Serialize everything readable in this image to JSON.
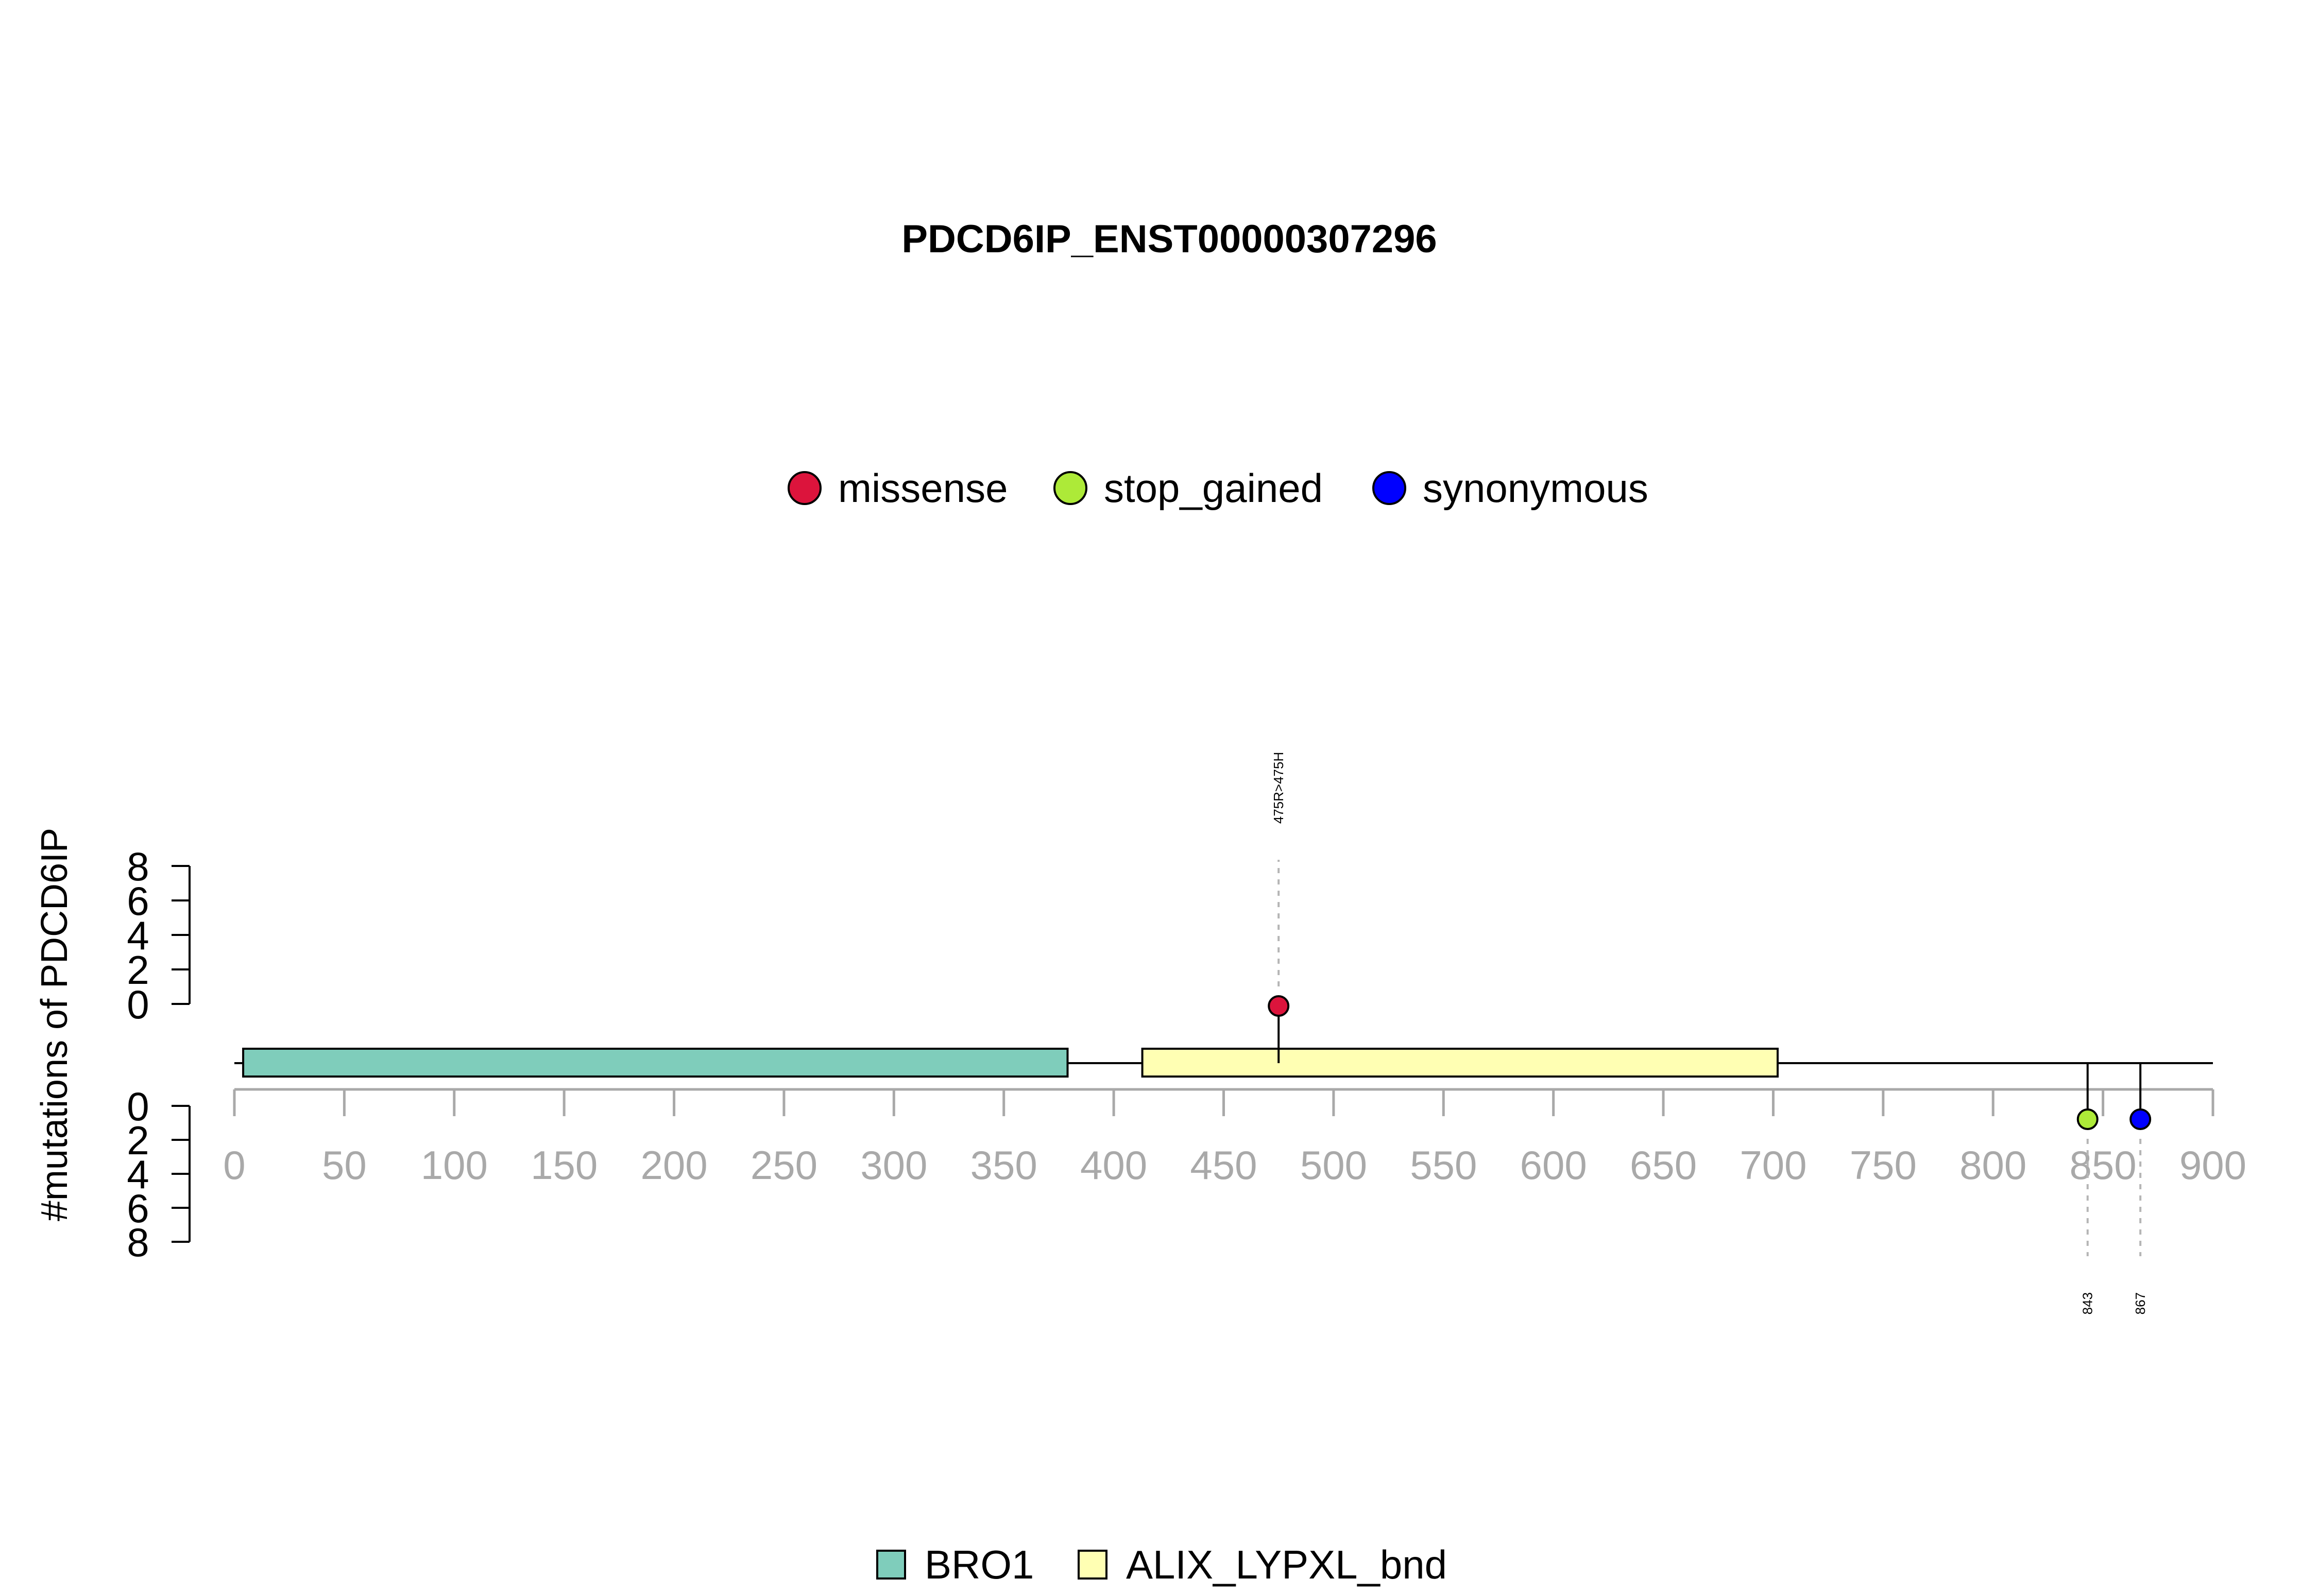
{
  "chart_data": {
    "type": "lollipop",
    "title": "PDCD6IP_ENST00000307296",
    "ylabel": "#mutations of PDCD6IP",
    "xlim": [
      0,
      900
    ],
    "x_ticks": [
      0,
      50,
      100,
      150,
      200,
      250,
      300,
      350,
      400,
      450,
      500,
      550,
      600,
      650,
      700,
      750,
      800,
      850,
      900
    ],
    "y_ticks_upper": [
      0,
      2,
      4,
      6,
      8
    ],
    "y_ticks_lower": [
      0,
      2,
      4,
      6,
      8
    ],
    "protein_length": 900,
    "mutation_legend": [
      {
        "name": "missense",
        "color": "#dc143c"
      },
      {
        "name": "stop_gained",
        "color": "#adea38"
      },
      {
        "name": "synonymous",
        "color": "#0000ff"
      }
    ],
    "domain_legend": [
      {
        "name": "BRO1",
        "color": "#7fcdbb"
      },
      {
        "name": "ALIX_LYPXL_bnd",
        "color": "#ffffb3"
      }
    ],
    "domains": [
      {
        "name": "BRO1",
        "start": 4,
        "end": 379,
        "color": "#7fcdbb"
      },
      {
        "name": "ALIX_LYPXL_bnd",
        "start": 413,
        "end": 702,
        "color": "#ffffb3"
      }
    ],
    "mutations": [
      {
        "position": 475,
        "label": "475R>475H",
        "type": "missense",
        "count": 1,
        "side": "top",
        "color": "#dc143c"
      },
      {
        "position": 843,
        "label": "843",
        "type": "stop_gained",
        "count": 1,
        "side": "bottom",
        "color": "#adea38"
      },
      {
        "position": 867,
        "label": "867",
        "type": "synonymous",
        "count": 1,
        "side": "bottom",
        "color": "#0000ff"
      }
    ]
  }
}
